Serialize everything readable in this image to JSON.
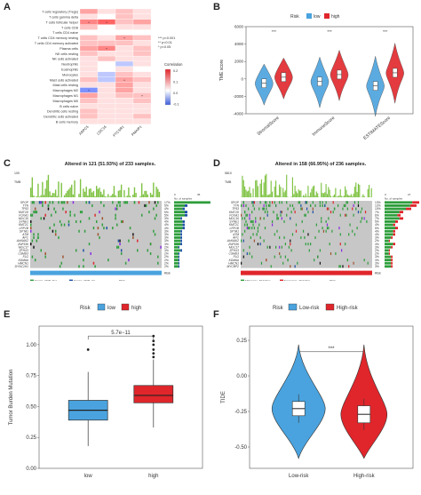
{
  "panels": {
    "A": {
      "letter": "A",
      "rows": [
        "T cells regulatory (Tregs)",
        "T cells gamma delta",
        "T cells follicular helper",
        "T cells CD8",
        "T cells CD4 naive",
        "T cells CD4 memory resting",
        "T cells CD4 memory activated",
        "Plasma cells",
        "NK cells resting",
        "NK cells activated",
        "Neutrophils",
        "Eosinophils",
        "Monocytes",
        "Mast cells activated",
        "Mast cells resting",
        "Macrophages M2",
        "Macrophages M1",
        "Macrophages M0",
        "B cells naive",
        "Dendritic cells resting",
        "Dendritic cells activated",
        "B cells memory"
      ],
      "cols": [
        "ARPC5",
        "CDC16",
        "PTCSR1",
        "PMAIP1"
      ],
      "legend_title": "Correlation",
      "legend_ticks": [
        "0.2",
        "0.1",
        "0.0",
        "-0.1"
      ],
      "sig_notes": [
        "***  p<0.001",
        "**   p<0.01",
        "*    p<0.05"
      ]
    },
    "B": {
      "letter": "B",
      "legend_title": "Risk",
      "legend_low": "low",
      "legend_high": "high",
      "ylabel": "TME score",
      "yticks": [
        "6000",
        "4000",
        "2000",
        "0",
        "-2000",
        "-4000"
      ],
      "categories": [
        "StromalScore",
        "ImmuneScore",
        "ESTIMATEScore"
      ],
      "sig": [
        "***",
        "***",
        "***"
      ]
    },
    "C": {
      "letter": "C",
      "title": "Altered in 121 (51.93%) of 233 samples.",
      "tmb_label": "TMB",
      "tmb_max": "109",
      "axis_right": [
        "0",
        "35"
      ],
      "axis_right_label": "No. of samples",
      "genes": [
        "SPOP",
        "TTN",
        "TP53",
        "KMT2D",
        "FOXA1",
        "MUC16",
        "SYNE1",
        "KMT2C",
        "LRP1B",
        "SPTA1",
        "ATM",
        "APC",
        "AHNAK2",
        "ZNF536",
        "MUC17",
        "ZFHX3",
        "CSMD3",
        "FLG",
        "KDM6A",
        "HMCN1",
        "DYNC1H1"
      ],
      "pcts": [
        "17%",
        "5%",
        "4%",
        "5%",
        "5%",
        "3%",
        "4%",
        "4%",
        "4%",
        "3%",
        "3%",
        "3%",
        "3%",
        "3%",
        "2%",
        "3%",
        "2%",
        "2%",
        "2%",
        "2%",
        "2%"
      ],
      "risk_label": "Risk",
      "legend_items": [
        "Frame_Shift_Del",
        "Frame_Shift_Ins",
        "Missense_Mutation",
        "In_Frame_Del",
        "Nonsense_Mutation",
        "Multi_Hit"
      ],
      "legend_risk_title": "Risk",
      "legend_risk": [
        "high",
        "low"
      ]
    },
    "D": {
      "letter": "D",
      "title": "Altered in 158 (66.95%) of 236 samples.",
      "tmb_label": "TMB",
      "tmb_max": "5810",
      "axis_right": [
        "0",
        "27"
      ],
      "axis_right_label": "No. of samples",
      "genes": [
        "SPOP",
        "TTN",
        "TP53",
        "KMT2D",
        "FOXA1",
        "MUC16",
        "SYNE1",
        "KMT2C",
        "LRP1B",
        "SPTA1",
        "ATM",
        "APC",
        "AHNAK2",
        "ZNF536",
        "MUC17",
        "ZFHX3",
        "CSMD3",
        "FLG",
        "KDM6A",
        "HMCN1",
        "MYCBP2"
      ],
      "pcts": [
        "13%",
        "12%",
        "10%",
        "7%",
        "6%",
        "7%",
        "5%",
        "4%",
        "5%",
        "4%",
        "4%",
        "3%",
        "2%",
        "4%",
        "3%",
        "2%",
        "2%",
        "3%",
        "3%",
        "3%",
        "3%"
      ],
      "risk_label": "Risk",
      "legend_items": [
        "Missense_Mutation",
        "Nonsense_Mutation",
        "Frame_Shift_Del",
        "Frame_Shift_Ins",
        "In_Frame_Del",
        "Multi_Hit"
      ],
      "legend_risk_title": "Risk",
      "legend_risk": [
        "high",
        "low"
      ]
    },
    "E": {
      "letter": "E",
      "legend_title": "Risk",
      "legend_low": "low",
      "legend_high": "high",
      "pval": "5.7e−11",
      "ylabel": "Tumor Burden Mutation",
      "yticks": [
        "1.00",
        "0.75",
        "0.50",
        "0.25",
        "0.00"
      ],
      "categories": [
        "low",
        "high"
      ]
    },
    "F": {
      "letter": "F",
      "legend_title": "Risk",
      "legend_low": "Low-risk",
      "legend_high": "High-risk",
      "sig": "***",
      "ylabel": "TIDE",
      "yticks": [
        "0.25",
        "0.00",
        "-0.25",
        "-0.50"
      ],
      "categories": [
        "Low-risk",
        "High-risk"
      ]
    }
  },
  "colors": {
    "low": "#4aa3de",
    "high": "#e0262b",
    "heat_pos": "#e0262b",
    "heat_neg": "#3b5bd9"
  },
  "chart_data": [
    {
      "type": "heatmap",
      "rows": [
        "T cells regulatory (Tregs)",
        "T cells gamma delta",
        "T cells follicular helper",
        "T cells CD8",
        "T cells CD4 naive",
        "T cells CD4 memory resting",
        "T cells CD4 memory activated",
        "Plasma cells",
        "NK cells resting",
        "NK cells activated",
        "Neutrophils",
        "Eosinophils",
        "Monocytes",
        "Mast cells activated",
        "Mast cells resting",
        "Macrophages M2",
        "Macrophages M1",
        "Macrophages M0",
        "B cells naive",
        "Dendritic cells resting",
        "Dendritic cells activated",
        "B cells memory"
      ],
      "cols": [
        "ARPC5",
        "CDC16",
        "PTCSR1",
        "PMAIP1"
      ],
      "values": [
        [
          0.15,
          0.05,
          0.1,
          0.05
        ],
        [
          0.05,
          0.0,
          0.1,
          0.05
        ],
        [
          0.2,
          0.25,
          0.1,
          0.15
        ],
        [
          0.1,
          0.0,
          0.05,
          0.05
        ],
        [
          0.0,
          0.0,
          0.0,
          0.0
        ],
        [
          0.1,
          0.05,
          0.15,
          0.1
        ],
        [
          0.1,
          0.1,
          0.1,
          0.05
        ],
        [
          0.15,
          0.2,
          0.05,
          0.1
        ],
        [
          0.1,
          0.05,
          0.05,
          0.1
        ],
        [
          0.05,
          0.1,
          0.05,
          0.05
        ],
        [
          0.05,
          0.0,
          -0.05,
          0.05
        ],
        [
          0.05,
          0.0,
          0.05,
          0.0
        ],
        [
          0.05,
          -0.05,
          0.1,
          0.05
        ],
        [
          0.1,
          -0.05,
          0.15,
          0.1
        ],
        [
          0.05,
          0.05,
          0.15,
          0.05
        ],
        [
          -0.1,
          0.05,
          0.15,
          0.05
        ],
        [
          0.15,
          0.05,
          0.1,
          0.1
        ],
        [
          0.1,
          0.05,
          0.05,
          0.1
        ],
        [
          0.05,
          0.05,
          0.05,
          0.05
        ],
        [
          0.1,
          0.05,
          0.05,
          0.05
        ],
        [
          0.1,
          0.05,
          0.05,
          0.1
        ],
        [
          0.05,
          0.05,
          0.05,
          0.05
        ]
      ],
      "legend_title": "Correlation"
    },
    {
      "type": "violin",
      "categories": [
        "StromalScore",
        "ImmuneScore",
        "ESTIMATEScore"
      ],
      "series": [
        {
          "name": "low",
          "medians": [
            -500,
            -300,
            -800
          ]
        },
        {
          "name": "high",
          "medians": [
            200,
            500,
            700
          ]
        }
      ],
      "ylabel": "TME score",
      "ylim": [
        -4000,
        6000
      ]
    },
    {
      "type": "bar",
      "title": "Altered in 121 (51.93%) of 233 samples.",
      "categories": [
        "SPOP",
        "TTN",
        "TP53",
        "KMT2D",
        "FOXA1",
        "MUC16",
        "SYNE1",
        "KMT2C",
        "LRP1B",
        "SPTA1",
        "ATM",
        "APC",
        "AHNAK2",
        "ZNF536",
        "MUC17",
        "ZFHX3",
        "CSMD3",
        "FLG",
        "KDM6A",
        "HMCN1",
        "DYNC1H1"
      ],
      "values": [
        17,
        5,
        4,
        5,
        5,
        3,
        4,
        4,
        4,
        3,
        3,
        3,
        3,
        3,
        2,
        3,
        2,
        2,
        2,
        2,
        2
      ]
    },
    {
      "type": "bar",
      "title": "Altered in 158 (66.95%) of 236 samples.",
      "categories": [
        "SPOP",
        "TTN",
        "TP53",
        "KMT2D",
        "FOXA1",
        "MUC16",
        "SYNE1",
        "KMT2C",
        "LRP1B",
        "SPTA1",
        "ATM",
        "APC",
        "AHNAK2",
        "ZNF536",
        "MUC17",
        "ZFHX3",
        "CSMD3",
        "FLG",
        "KDM6A",
        "HMCN1",
        "MYCBP2"
      ],
      "values": [
        13,
        12,
        10,
        7,
        6,
        7,
        5,
        4,
        5,
        4,
        4,
        3,
        2,
        4,
        3,
        2,
        2,
        3,
        3,
        3,
        3
      ]
    },
    {
      "type": "box",
      "categories": [
        "low",
        "high"
      ],
      "series": [
        {
          "name": "low",
          "q1": 0.39,
          "median": 0.47,
          "q3": 0.55,
          "whisker_low": 0.18,
          "whisker_high": 0.78
        },
        {
          "name": "high",
          "q1": 0.53,
          "median": 0.59,
          "q3": 0.67,
          "whisker_low": 0.33,
          "whisker_high": 0.88
        }
      ],
      "ylabel": "Tumor Burden Mutation",
      "ylim": [
        0,
        1.15
      ]
    },
    {
      "type": "violin",
      "categories": [
        "Low-risk",
        "High-risk"
      ],
      "series": [
        {
          "name": "Low-risk",
          "q1": -0.28,
          "median": -0.23,
          "q3": -0.18
        },
        {
          "name": "High-risk",
          "q1": -0.33,
          "median": -0.27,
          "q3": -0.21
        }
      ],
      "ylabel": "TIDE",
      "ylim": [
        -0.65,
        0.35
      ]
    }
  ]
}
